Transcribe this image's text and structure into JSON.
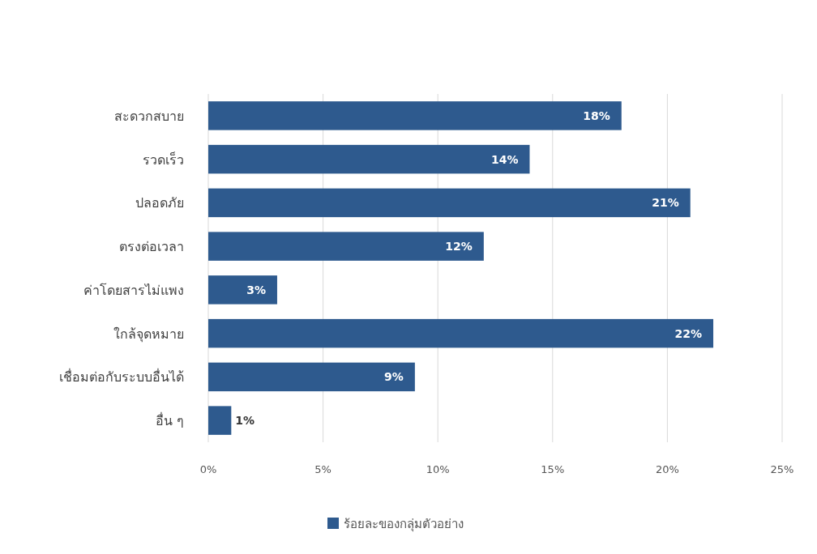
{
  "chart_data": {
    "type": "bar",
    "orientation": "horizontal",
    "categories": [
      "สะดวกสบาย",
      "รวดเร็ว",
      "ปลอดภัย",
      "ตรงต่อเวลา",
      "ค่าโดยสารไม่แพง",
      "ใกล้จุดหมาย",
      "เชื่อมต่อกับระบบอื่นได้",
      "อื่น ๆ"
    ],
    "series": [
      {
        "name": "ร้อยละของกลุ่มตัวอย่าง",
        "color": "#2e5a8e",
        "values": [
          18,
          14,
          21,
          12,
          3,
          22,
          9,
          1
        ],
        "value_labels": [
          "18%",
          "14%",
          "21%",
          "12%",
          "3%",
          "22%",
          "9%",
          "1%"
        ]
      }
    ],
    "xlim": [
      0,
      25
    ],
    "xticks": [
      {
        "value": 0,
        "label": "0%"
      },
      {
        "value": 5,
        "label": "5%"
      },
      {
        "value": 10,
        "label": "10%"
      },
      {
        "value": 15,
        "label": "15%"
      },
      {
        "value": 20,
        "label": "20%"
      },
      {
        "value": 25,
        "label": "25%"
      }
    ],
    "grid": "x",
    "legend": "bottom"
  }
}
